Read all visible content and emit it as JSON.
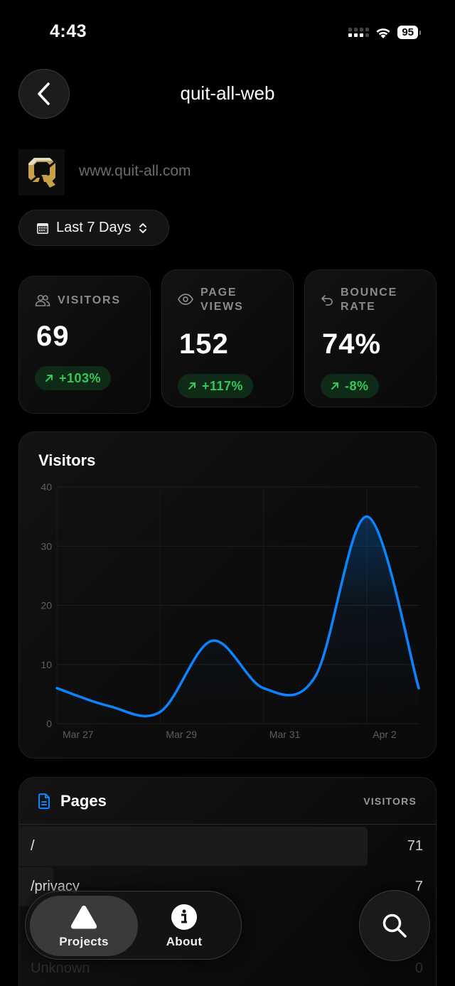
{
  "status_bar": {
    "time": "4:43",
    "battery": "95",
    "icons": [
      "cellular-signal-icon",
      "wifi-icon",
      "battery-icon"
    ]
  },
  "header": {
    "title": "quit-all-web",
    "back_icon": "chevron-left-icon"
  },
  "site": {
    "logo": "quit-all-q-logo",
    "url": "www.quit-all.com"
  },
  "date_range": {
    "icon": "calendar-icon",
    "selected": "Last 7 Days",
    "chevron_icon": "chevron-up-down-icon"
  },
  "stats": [
    {
      "icon": "users-icon",
      "label_line1": "VISITORS",
      "label_line2": "",
      "value": "69",
      "change": "+103%",
      "change_icon": "arrow-up-right-icon",
      "change_color": "#35c75a"
    },
    {
      "icon": "eye-icon",
      "label_line1": "PAGE",
      "label_line2": "VIEWS",
      "value": "152",
      "change": "+117%",
      "change_icon": "arrow-up-right-icon",
      "change_color": "#35c75a"
    },
    {
      "icon": "undo-arrow-icon",
      "label_line1": "BOUNCE",
      "label_line2": "RATE",
      "value": "74%",
      "change": "-8%",
      "change_icon": "arrow-up-right-icon",
      "change_color": "#35c75a"
    }
  ],
  "chart": {
    "title": "Visitors",
    "line_color": "#0a84ff"
  },
  "chart_data": {
    "type": "line",
    "title": "Visitors",
    "x": [
      "Mar 27",
      "Mar 28",
      "Mar 29",
      "Mar 30",
      "Mar 31",
      "Apr 1",
      "Apr 2",
      "Apr 3"
    ],
    "series": [
      {
        "name": "Visitors",
        "values": [
          6,
          3,
          2,
          14,
          6,
          8,
          35,
          6
        ]
      }
    ],
    "x_tick_labels": [
      "Mar 27",
      "Mar 29",
      "Mar 31",
      "Apr 2"
    ],
    "y_ticks": [
      0,
      10,
      20,
      30,
      40
    ],
    "ylim": [
      0,
      40
    ],
    "xlabel": "",
    "ylabel": "",
    "grid": true,
    "legend": "none"
  },
  "pages": {
    "title": "Pages",
    "icon": "document-icon",
    "column_header": "VISITORS",
    "rows": [
      {
        "path": "/",
        "visitors": "71",
        "bar_pct": 83
      },
      {
        "path": "/privacy",
        "visitors": "7",
        "bar_pct": 8
      },
      {
        "path": "Unknown",
        "visitors": "0",
        "bar_pct": 0
      }
    ]
  },
  "bottom_nav": {
    "tabs": [
      {
        "label": "Projects",
        "icon": "triangle-icon",
        "active": true
      },
      {
        "label": "About",
        "icon": "info-circle-icon",
        "active": false
      }
    ],
    "search_icon": "magnifying-glass-icon"
  }
}
